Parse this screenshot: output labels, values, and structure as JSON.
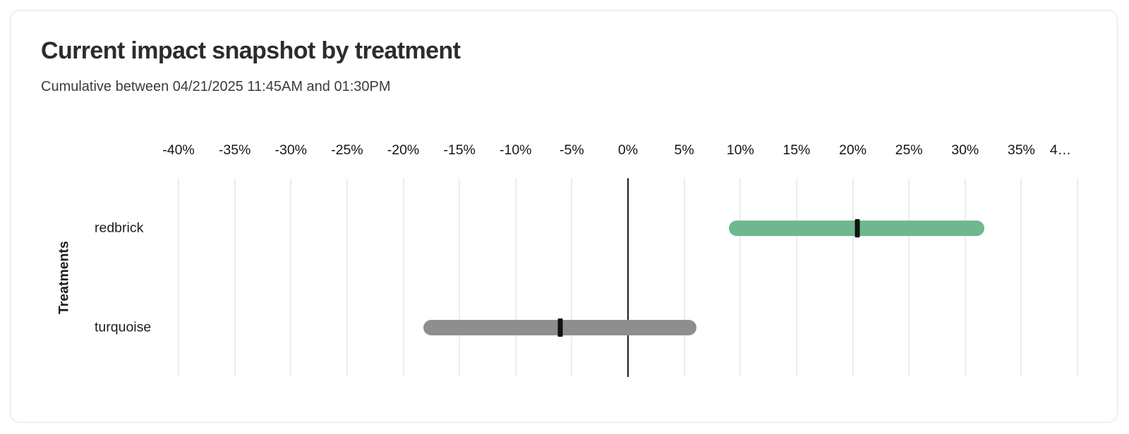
{
  "card": {
    "title": "Current impact snapshot by treatment",
    "subtitle": "Cumulative between 04/21/2025 11:45AM and 01:30PM"
  },
  "chart_data": {
    "type": "bar",
    "orientation": "horizontal",
    "title": "Current impact snapshot by treatment",
    "subtitle": "Cumulative between 04/21/2025 11:45AM and 01:30PM",
    "xlabel": "",
    "ylabel": "Treatments",
    "x_unit": "%",
    "xlim": [
      -40,
      40
    ],
    "grid": "vertical",
    "zero_line": true,
    "legend": "none",
    "x_ticks": [
      -40,
      -35,
      -30,
      -25,
      -20,
      -15,
      -10,
      -5,
      0,
      5,
      10,
      15,
      20,
      25,
      30,
      35,
      40
    ],
    "x_tick_labels": [
      "-40%",
      "-35%",
      "-30%",
      "-25%",
      "-20%",
      "-15%",
      "-10%",
      "-5%",
      "0%",
      "5%",
      "10%",
      "15%",
      "20%",
      "25%",
      "30%",
      "35%",
      "4…"
    ],
    "categories": [
      "redbrick",
      "turquoise"
    ],
    "series": [
      {
        "name": "redbrick",
        "low": 9.0,
        "high": 31.7,
        "estimate": 20.4,
        "color": "#6fb88d"
      },
      {
        "name": "turquoise",
        "low": -18.2,
        "high": 6.1,
        "estimate": -6.0,
        "color": "#8e8e8e"
      }
    ],
    "marker_color": "#111111"
  },
  "colors": {
    "card_border": "#e4e4e7",
    "gridline": "#ededee",
    "zero_line": "#1b1b1d",
    "bar_green": "#6fb88d",
    "bar_gray": "#8e8e8e",
    "text_dark": "#2b2c2e"
  }
}
